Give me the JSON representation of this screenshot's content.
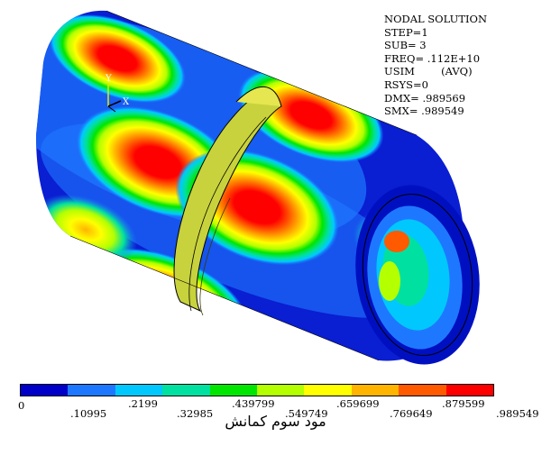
{
  "info": {
    "title": "NODAL SOLUTION",
    "lines": [
      "STEP=1",
      "SUB= 3",
      "FREQ= .112E+10",
      "USIM        (AVQ)",
      "RSYS=0",
      "DMX= .989569",
      "SMX= .989549"
    ]
  },
  "triad": {
    "y_label": "Y",
    "x_label": "X"
  },
  "legend": {
    "colors": [
      "#0000c8",
      "#1e78ff",
      "#00c8ff",
      "#00e0a0",
      "#00e600",
      "#b4ff00",
      "#ffff00",
      "#ffb400",
      "#ff5a00",
      "#ff0000"
    ],
    "ticks_upper": [
      ".2199",
      ".439799",
      ".659699",
      ".879599"
    ],
    "ticks_lower": [
      "0",
      ".10995",
      ".32985",
      ".549749",
      ".769649",
      ".989549"
    ]
  },
  "caption": "مود سوم کمانش"
}
